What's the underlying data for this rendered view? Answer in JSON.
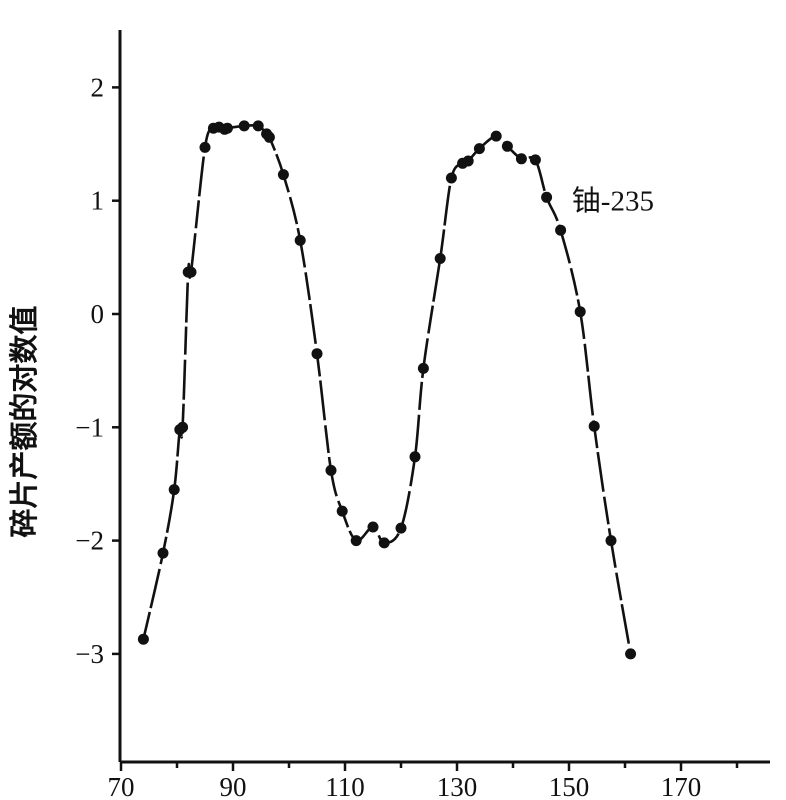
{
  "chart_data": {
    "type": "line",
    "title": "",
    "xlabel": "",
    "ylabel": "碎片产额的对数值",
    "xlim": [
      70,
      185
    ],
    "ylim": [
      -4,
      2.6
    ],
    "x_ticks": [
      70,
      90,
      110,
      130,
      150,
      170
    ],
    "x_minor_ticks": [
      80,
      100,
      120,
      140,
      160,
      180
    ],
    "y_ticks": [
      2,
      1,
      0,
      -1,
      -2,
      -3
    ],
    "y_tick_labels": [
      "2",
      "1",
      "0",
      "−1",
      "−2",
      "−3"
    ],
    "grid": false,
    "series": [
      {
        "name": "",
        "color": "#111111",
        "x": [
          74,
          77.5,
          79.5,
          80.5,
          81,
          82,
          82.5,
          85,
          86.5,
          87.5,
          88.5,
          89,
          92,
          94.5,
          96,
          96.5,
          99,
          102,
          105,
          107.5,
          109.5,
          112,
          115,
          117,
          120,
          122.5,
          124,
          127,
          129,
          131,
          132,
          134,
          137,
          139,
          141.5,
          144,
          146,
          148.5,
          152,
          154.5,
          157.5,
          161
        ],
        "y": [
          -2.87,
          -2.11,
          -1.55,
          -1.02,
          -1.0,
          0.37,
          0.37,
          1.47,
          1.64,
          1.65,
          1.63,
          1.64,
          1.66,
          1.66,
          1.59,
          1.56,
          1.23,
          0.65,
          -0.35,
          -1.38,
          -1.74,
          -2.0,
          -1.88,
          -2.02,
          -1.89,
          -1.26,
          -0.48,
          0.49,
          1.2,
          1.33,
          1.35,
          1.46,
          1.57,
          1.48,
          1.37,
          1.36,
          1.03,
          0.74,
          0.02,
          -0.99,
          -2.0,
          -3.0
        ]
      }
    ],
    "annotations": [
      {
        "text": "铀-235",
        "x": 150.5,
        "y": 1.0
      }
    ]
  }
}
